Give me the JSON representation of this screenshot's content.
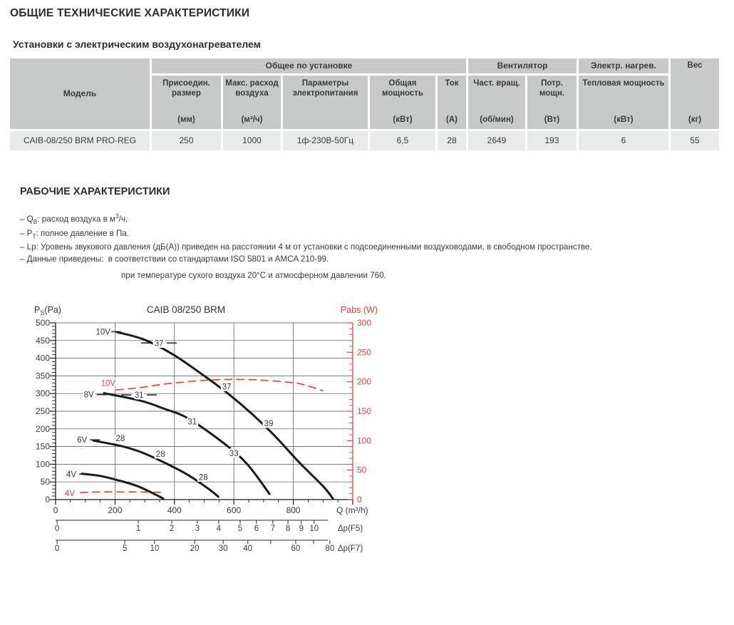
{
  "page": {
    "title": "ОБЩИЕ ТЕХНИЧЕСКИЕ ХАРАКТЕРИСТИКИ",
    "subtitle": "Установки с электрическим воздухонагревателем",
    "section2_title": "РАБОЧИЕ ХАРАКТЕРИСТИКИ"
  },
  "table": {
    "model_header": "Модель",
    "groups": [
      {
        "label": "Общее по установке"
      },
      {
        "label": "Вентилятор"
      },
      {
        "label": "Электр. нагрев."
      }
    ],
    "weight_header": "Вес",
    "weight_unit": "(кг)",
    "columns": [
      {
        "name": "Присоедин. размер",
        "unit": "(мм)"
      },
      {
        "name": "Макс. расход воздуха",
        "unit": "(м³/ч)"
      },
      {
        "name": "Параметры электропитания",
        "unit": ""
      },
      {
        "name": "Общая мощность",
        "unit": "(кВт)"
      },
      {
        "name": "Ток",
        "unit": "(А)"
      },
      {
        "name": "Част. вращ.",
        "unit": "(об/мин)"
      },
      {
        "name": "Потр. мощн.",
        "unit": "(Вт)"
      },
      {
        "name": "Тепловая мощность",
        "unit": "(кВт)"
      }
    ],
    "row": {
      "model": "CAIB-08/250 BRM PRO-REG",
      "values": [
        "250",
        "1000",
        "1ф-230В-50Гц",
        "6,5",
        "28",
        "2649",
        "193",
        "6",
        "55"
      ]
    }
  },
  "notes": [
    "– Q<sub>В</sub>: расход воздуха в м<sup>3</sup>/ч.",
    "– P<sub>Т</sub>: полное давление в Па.",
    "– Lp: Уровень звукового давления (дБ(А)) приведен на расстоянии 4 м от установки с подсоединенными воздуховодами, в свободном пространстве.",
    "– Данные приведены:&nbsp; в соответствии со стандартами ISO 5801 и AMCA 210-99.",
    "при температуре сухого воздуха 20°C и атмосферном давлении 760."
  ],
  "chart_data": {
    "type": "line",
    "title": "CAIB 08/250 BRM",
    "left_axis": {
      "label_pre": "P",
      "label_sub": "S",
      "label_post": "(Pa)",
      "min": 0,
      "max": 500,
      "step": 50,
      "minor": 10
    },
    "right_axis": {
      "label": "Pabs (W)",
      "min": 0,
      "max": 300,
      "step": 50,
      "minor": 10
    },
    "x_axis": {
      "label": "Q (m³/h)",
      "min": 0,
      "max": 1000,
      "step": 200,
      "minor": 50
    },
    "f5_axis": {
      "label": "Δp(F5)",
      "ticks": [
        [
          "0",
          5
        ],
        [
          "1",
          278
        ],
        [
          "2",
          391
        ],
        [
          "3",
          477
        ],
        [
          "4",
          549
        ],
        [
          "5",
          621
        ],
        [
          "6",
          676
        ],
        [
          "7",
          731
        ],
        [
          "8",
          782
        ],
        [
          "9",
          827
        ],
        [
          "10",
          870
        ]
      ]
    },
    "f7_axis": {
      "label": "Δp(F7)",
      "ticks": [
        [
          "0",
          5
        ],
        [
          "5",
          233
        ],
        [
          "10",
          333
        ],
        [
          "20",
          468
        ],
        [
          "30",
          564
        ],
        [
          "40",
          647
        ],
        [
          "",
          724
        ],
        [
          "60",
          808
        ],
        [
          "",
          868
        ],
        [
          "80",
          923
        ]
      ]
    },
    "colors": {
      "pressure": "#1b1b1b",
      "power": "#e2453e",
      "grid": "#4d4d4d",
      "text": "#3a3a3a"
    },
    "curves": [
      {
        "name": "10V",
        "kind": "pressure",
        "points": [
          [
            206,
            474
          ],
          [
            300,
            452
          ],
          [
            400,
            408
          ],
          [
            500,
            350
          ],
          [
            580,
            300
          ],
          [
            660,
            243
          ],
          [
            740,
            178
          ],
          [
            820,
            105
          ],
          [
            900,
            38
          ],
          [
            933,
            3
          ]
        ]
      },
      {
        "name": "8V",
        "kind": "pressure",
        "points": [
          [
            163,
            301
          ],
          [
            285,
            280
          ],
          [
            365,
            257
          ],
          [
            445,
            230
          ],
          [
            565,
            160
          ],
          [
            645,
            100
          ],
          [
            720,
            16
          ]
        ]
      },
      {
        "name": "6V",
        "kind": "pressure",
        "points": [
          [
            127,
            167
          ],
          [
            218,
            152
          ],
          [
            285,
            135
          ],
          [
            365,
            105
          ],
          [
            445,
            70
          ],
          [
            515,
            30
          ],
          [
            548,
            8
          ]
        ]
      },
      {
        "name": "4V",
        "kind": "pressure",
        "points": [
          [
            89,
            73
          ],
          [
            150,
            67
          ],
          [
            204,
            56
          ],
          [
            276,
            38
          ],
          [
            341,
            12
          ],
          [
            362,
            3
          ]
        ]
      },
      {
        "name": "10V",
        "kind": "power",
        "points": [
          [
            204,
            186
          ],
          [
            285,
            190
          ],
          [
            364,
            196
          ],
          [
            444,
            200
          ],
          [
            525,
            203
          ],
          [
            604,
            204
          ],
          [
            683,
            203
          ],
          [
            765,
            200
          ],
          [
            827,
            196
          ],
          [
            899,
            185
          ]
        ]
      },
      {
        "name": "4V",
        "kind": "power",
        "points": [
          [
            84,
            12
          ],
          [
            150,
            13
          ],
          [
            220,
            13
          ],
          [
            290,
            13
          ],
          [
            360,
            12
          ]
        ]
      }
    ],
    "curve_labels": [
      {
        "text": "10V",
        "q": 160,
        "p": 475,
        "dash": "right"
      },
      {
        "text": "37",
        "q": 348,
        "p": 443,
        "dash": "both"
      },
      {
        "text": "37",
        "q": 576,
        "p": 320
      },
      {
        "text": "39",
        "q": 717,
        "p": 216
      },
      {
        "text": "8V",
        "q": 112,
        "p": 297,
        "dash": "right"
      },
      {
        "text": "31",
        "q": 281,
        "p": 296,
        "dash": "both"
      },
      {
        "text": "31",
        "q": 460,
        "p": 221
      },
      {
        "text": "33",
        "q": 600,
        "p": 131
      },
      {
        "text": "6V",
        "q": 89,
        "p": 169,
        "dash": "right"
      },
      {
        "text": "28",
        "q": 218,
        "p": 173
      },
      {
        "text": "28",
        "q": 353,
        "p": 129
      },
      {
        "text": "28",
        "q": 497,
        "p": 64
      },
      {
        "text": "4V",
        "q": 53,
        "p": 72,
        "dash": "right"
      },
      {
        "text": "10V",
        "q": 177,
        "p": 330,
        "color": "power"
      },
      {
        "text": "4V",
        "q": 48,
        "p": 18,
        "color": "power"
      }
    ]
  }
}
